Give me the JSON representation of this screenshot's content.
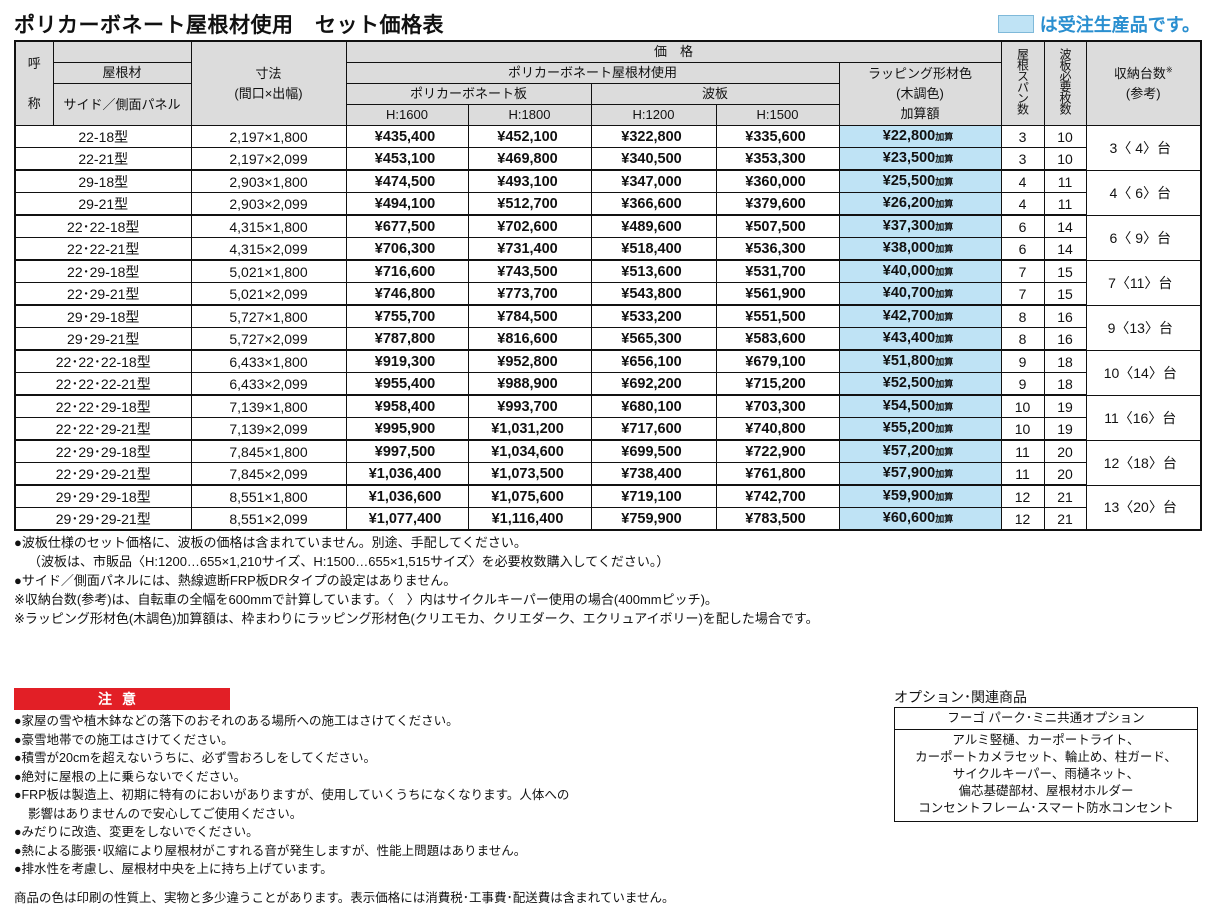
{
  "title": "ポリカーボネート屋根材使用　セット価格表",
  "legend": {
    "text": "は受注生産品です。",
    "color": "#bfe3f5"
  },
  "header": {
    "yobi": "呼",
    "sho": "称",
    "roof": "屋根材",
    "side": "サイド／側面パネル",
    "dims": "寸法",
    "dims_sub": "(間口×出幅)",
    "price": "価　格",
    "poly_group": "ポリカーボネート屋根材使用",
    "poly_board": "ポリカーボネート板",
    "wave": "波板",
    "h1600": "H:1600",
    "h1800": "H:1800",
    "h1200": "H:1200",
    "h1500": "H:1500",
    "wrap1": "ラッピング形材色",
    "wrap2": "(木調色)",
    "wrap3": "加算額",
    "span": "屋根スパン数",
    "sheets": "波板必要枚数",
    "storage": "収納台数",
    "storage_mark": "※",
    "storage_sub": "(参考)"
  },
  "wrap_suffix": "加算",
  "rows": [
    {
      "name": "22-18型",
      "dims": "2,197×1,800",
      "h1600": "¥435,400",
      "h1800": "¥452,100",
      "h1200": "¥322,800",
      "h1500": "¥335,600",
      "wrap": "¥22,800",
      "span": "3",
      "sheets": "10"
    },
    {
      "name": "22-21型",
      "dims": "2,197×2,099",
      "h1600": "¥453,100",
      "h1800": "¥469,800",
      "h1200": "¥340,500",
      "h1500": "¥353,300",
      "wrap": "¥23,500",
      "span": "3",
      "sheets": "10"
    },
    {
      "name": "29-18型",
      "dims": "2,903×1,800",
      "h1600": "¥474,500",
      "h1800": "¥493,100",
      "h1200": "¥347,000",
      "h1500": "¥360,000",
      "wrap": "¥25,500",
      "span": "4",
      "sheets": "11"
    },
    {
      "name": "29-21型",
      "dims": "2,903×2,099",
      "h1600": "¥494,100",
      "h1800": "¥512,700",
      "h1200": "¥366,600",
      "h1500": "¥379,600",
      "wrap": "¥26,200",
      "span": "4",
      "sheets": "11"
    },
    {
      "name": "22･22-18型",
      "dims": "4,315×1,800",
      "h1600": "¥677,500",
      "h1800": "¥702,600",
      "h1200": "¥489,600",
      "h1500": "¥507,500",
      "wrap": "¥37,300",
      "span": "6",
      "sheets": "14"
    },
    {
      "name": "22･22-21型",
      "dims": "4,315×2,099",
      "h1600": "¥706,300",
      "h1800": "¥731,400",
      "h1200": "¥518,400",
      "h1500": "¥536,300",
      "wrap": "¥38,000",
      "span": "6",
      "sheets": "14"
    },
    {
      "name": "22･29-18型",
      "dims": "5,021×1,800",
      "h1600": "¥716,600",
      "h1800": "¥743,500",
      "h1200": "¥513,600",
      "h1500": "¥531,700",
      "wrap": "¥40,000",
      "span": "7",
      "sheets": "15"
    },
    {
      "name": "22･29-21型",
      "dims": "5,021×2,099",
      "h1600": "¥746,800",
      "h1800": "¥773,700",
      "h1200": "¥543,800",
      "h1500": "¥561,900",
      "wrap": "¥40,700",
      "span": "7",
      "sheets": "15"
    },
    {
      "name": "29･29-18型",
      "dims": "5,727×1,800",
      "h1600": "¥755,700",
      "h1800": "¥784,500",
      "h1200": "¥533,200",
      "h1500": "¥551,500",
      "wrap": "¥42,700",
      "span": "8",
      "sheets": "16"
    },
    {
      "name": "29･29-21型",
      "dims": "5,727×2,099",
      "h1600": "¥787,800",
      "h1800": "¥816,600",
      "h1200": "¥565,300",
      "h1500": "¥583,600",
      "wrap": "¥43,400",
      "span": "8",
      "sheets": "16"
    },
    {
      "name": "22･22･22-18型",
      "dims": "6,433×1,800",
      "h1600": "¥919,300",
      "h1800": "¥952,800",
      "h1200": "¥656,100",
      "h1500": "¥679,100",
      "wrap": "¥51,800",
      "span": "9",
      "sheets": "18"
    },
    {
      "name": "22･22･22-21型",
      "dims": "6,433×2,099",
      "h1600": "¥955,400",
      "h1800": "¥988,900",
      "h1200": "¥692,200",
      "h1500": "¥715,200",
      "wrap": "¥52,500",
      "span": "9",
      "sheets": "18"
    },
    {
      "name": "22･22･29-18型",
      "dims": "7,139×1,800",
      "h1600": "¥958,400",
      "h1800": "¥993,700",
      "h1200": "¥680,100",
      "h1500": "¥703,300",
      "wrap": "¥54,500",
      "span": "10",
      "sheets": "19"
    },
    {
      "name": "22･22･29-21型",
      "dims": "7,139×2,099",
      "h1600": "¥995,900",
      "h1800": "¥1,031,200",
      "h1200": "¥717,600",
      "h1500": "¥740,800",
      "wrap": "¥55,200",
      "span": "10",
      "sheets": "19"
    },
    {
      "name": "22･29･29-18型",
      "dims": "7,845×1,800",
      "h1600": "¥997,500",
      "h1800": "¥1,034,600",
      "h1200": "¥699,500",
      "h1500": "¥722,900",
      "wrap": "¥57,200",
      "span": "11",
      "sheets": "20"
    },
    {
      "name": "22･29･29-21型",
      "dims": "7,845×2,099",
      "h1600": "¥1,036,400",
      "h1800": "¥1,073,500",
      "h1200": "¥738,400",
      "h1500": "¥761,800",
      "wrap": "¥57,900",
      "span": "11",
      "sheets": "20"
    },
    {
      "name": "29･29･29-18型",
      "dims": "8,551×1,800",
      "h1600": "¥1,036,600",
      "h1800": "¥1,075,600",
      "h1200": "¥719,100",
      "h1500": "¥742,700",
      "wrap": "¥59,900",
      "span": "12",
      "sheets": "21"
    },
    {
      "name": "29･29･29-21型",
      "dims": "8,551×2,099",
      "h1600": "¥1,077,400",
      "h1800": "¥1,116,400",
      "h1200": "¥759,900",
      "h1500": "¥783,500",
      "wrap": "¥60,600",
      "span": "12",
      "sheets": "21"
    }
  ],
  "storage": [
    "3〈 4〉台",
    "4〈 6〉台",
    "6〈 9〉台",
    "7〈11〉台",
    "9〈13〉台",
    "10〈14〉台",
    "11〈16〉台",
    "12〈18〉台",
    "13〈20〉台"
  ],
  "notes": [
    "●波板仕様のセット価格に、波板の価格は含まれていません。別途、手配してください。",
    "（波板は、市販品〈H:1200…655×1,210サイズ、H:1500…655×1,515サイズ〉を必要枚数購入してください。）",
    "●サイド／側面パネルには、熱線遮断FRP板DRタイプの設定はありません。",
    "※収納台数(参考)は、自転車の全幅を600mmで計算しています。〈　〉内はサイクルキーパー使用の場合(400mmピッチ)。",
    "※ラッピング形材色(木調色)加算額は、枠まわりにラッピング形材色(クリエモカ、クリエダーク、エクリュアイボリー)を配した場合です。"
  ],
  "caution": {
    "title": "注意",
    "items": [
      "●家屋の雪や植木鉢などの落下のおそれのある場所への施工はさけてください。",
      "●豪雪地帯での施工はさけてください。",
      "●積雪が20cmを超えないうちに、必ず雪おろしをしてください。",
      "●絶対に屋根の上に乗らないでください。",
      "●FRP板は製造上、初期に特有のにおいがありますが、使用していくうちになくなります。人体への",
      "影響はありませんので安心してご使用ください。",
      "●みだりに改造、変更をしないでください。",
      "●熱による膨張･収縮により屋根材がこすれる音が発生しますが、性能上問題はありません。",
      "●排水性を考慮し、屋根材中央を上に持ち上げています。"
    ]
  },
  "footer": "商品の色は印刷の性質上、実物と多少違うことがあります。表示価格には消費税･工事費･配送費は含まれていません。",
  "options": {
    "title": "オプション･関連商品",
    "header": "フーゴ パーク･ミニ共通オプション",
    "lines": [
      "アルミ竪樋、カーポートライト、",
      "カーポートカメラセット、輪止め、柱ガード、",
      "サイクルキーパー、雨樋ネット、",
      "偏芯基礎部材、屋根材ホルダー",
      "コンセントフレーム･スマート防水コンセント"
    ]
  }
}
